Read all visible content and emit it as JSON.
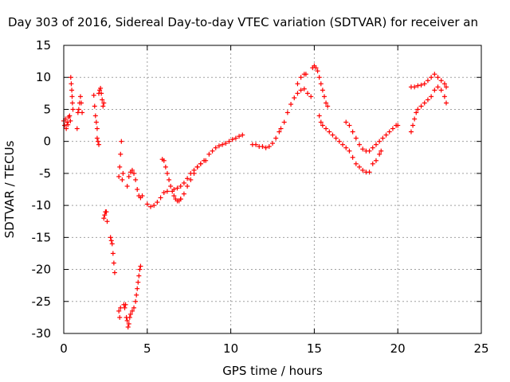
{
  "chart_data": {
    "type": "scatter",
    "title": "Day 303 of 2016, Sidereal Day-to-day VTEC variation (SDTVAR) for receiver an",
    "xlabel": "GPS time / hours",
    "ylabel": "SDTVAR / TECUs",
    "xlim": [
      0,
      25
    ],
    "ylim": [
      -30,
      15
    ],
    "xticks": [
      "0",
      "5",
      "10",
      "15",
      "20",
      "25"
    ],
    "yticks": [
      "-30",
      "-25",
      "-20",
      "-15",
      "-10",
      "-5",
      "0",
      "5",
      "10",
      "15"
    ],
    "grid": true,
    "marker": "plus",
    "series_color": "#ff0000",
    "series": [
      {
        "name": "",
        "points": [
          [
            0.0,
            3.2
          ],
          [
            0.05,
            2.5
          ],
          [
            0.1,
            3.5
          ],
          [
            0.15,
            2.0
          ],
          [
            0.2,
            3.0
          ],
          [
            0.25,
            2.6
          ],
          [
            0.3,
            3.8
          ],
          [
            0.35,
            4.0
          ],
          [
            0.4,
            3.2
          ],
          [
            0.42,
            10.0
          ],
          [
            0.45,
            9.0
          ],
          [
            0.48,
            8.0
          ],
          [
            0.5,
            7.0
          ],
          [
            0.52,
            6.0
          ],
          [
            0.55,
            5.0
          ],
          [
            0.8,
            2.0
          ],
          [
            0.85,
            4.5
          ],
          [
            0.9,
            5.0
          ],
          [
            0.95,
            6.0
          ],
          [
            1.0,
            7.0
          ],
          [
            1.05,
            6.0
          ],
          [
            1.1,
            4.5
          ],
          [
            1.8,
            7.2
          ],
          [
            1.85,
            5.5
          ],
          [
            1.9,
            4.0
          ],
          [
            1.95,
            3.0
          ],
          [
            2.0,
            2.0
          ],
          [
            2.0,
            0.5
          ],
          [
            2.05,
            0.0
          ],
          [
            2.1,
            -0.5
          ],
          [
            2.1,
            7.5
          ],
          [
            2.15,
            8.0
          ],
          [
            2.2,
            8.3
          ],
          [
            2.25,
            7.5
          ],
          [
            2.3,
            6.5
          ],
          [
            2.35,
            5.5
          ],
          [
            2.4,
            6.0
          ],
          [
            2.4,
            -12.0
          ],
          [
            2.45,
            -11.5
          ],
          [
            2.5,
            -11.0
          ],
          [
            2.55,
            -11.0
          ],
          [
            2.6,
            -12.5
          ],
          [
            2.8,
            -15.0
          ],
          [
            2.85,
            -15.5
          ],
          [
            2.9,
            -16.0
          ],
          [
            2.95,
            -17.5
          ],
          [
            3.0,
            -19.0
          ],
          [
            3.05,
            -20.5
          ],
          [
            3.3,
            -26.5
          ],
          [
            3.35,
            -27.5
          ],
          [
            3.4,
            -26.0
          ],
          [
            3.3,
            -5.5
          ],
          [
            3.35,
            -4.0
          ],
          [
            3.4,
            -2.0
          ],
          [
            3.45,
            0.0
          ],
          [
            3.5,
            -6.0
          ],
          [
            3.55,
            -5.0
          ],
          [
            3.6,
            -25.5
          ],
          [
            3.65,
            -26.0
          ],
          [
            3.7,
            -25.5
          ],
          [
            3.75,
            -27.5
          ],
          [
            3.8,
            -28.0
          ],
          [
            3.85,
            -29.0
          ],
          [
            3.9,
            -28.5
          ],
          [
            3.95,
            -27.5
          ],
          [
            4.0,
            -27.0
          ],
          [
            4.1,
            -26.5
          ],
          [
            4.2,
            -26.0
          ],
          [
            4.3,
            -25.0
          ],
          [
            4.35,
            -24.0
          ],
          [
            4.4,
            -23.0
          ],
          [
            4.45,
            -22.0
          ],
          [
            4.5,
            -21.0
          ],
          [
            4.55,
            -20.0
          ],
          [
            4.6,
            -19.5
          ],
          [
            3.8,
            -7.0
          ],
          [
            3.9,
            -5.5
          ],
          [
            4.0,
            -4.8
          ],
          [
            4.1,
            -4.5
          ],
          [
            4.2,
            -5.0
          ],
          [
            4.3,
            -6.0
          ],
          [
            4.4,
            -7.5
          ],
          [
            4.5,
            -8.5
          ],
          [
            4.6,
            -8.8
          ],
          [
            4.7,
            -8.5
          ],
          [
            5.0,
            -9.8
          ],
          [
            5.2,
            -10.2
          ],
          [
            5.4,
            -10.0
          ],
          [
            5.6,
            -9.5
          ],
          [
            5.8,
            -8.8
          ],
          [
            6.0,
            -8.0
          ],
          [
            6.2,
            -7.8
          ],
          [
            5.9,
            -2.8
          ],
          [
            6.0,
            -3.0
          ],
          [
            6.1,
            -4.0
          ],
          [
            6.2,
            -5.0
          ],
          [
            6.3,
            -6.0
          ],
          [
            6.4,
            -7.0
          ],
          [
            6.5,
            -7.8
          ],
          [
            6.6,
            -8.5
          ],
          [
            6.7,
            -9.0
          ],
          [
            6.8,
            -9.3
          ],
          [
            6.9,
            -9.3
          ],
          [
            7.0,
            -9.0
          ],
          [
            6.6,
            -7.5
          ],
          [
            6.8,
            -7.3
          ],
          [
            7.0,
            -7.0
          ],
          [
            7.2,
            -6.5
          ],
          [
            7.4,
            -5.8
          ],
          [
            7.6,
            -5.0
          ],
          [
            7.8,
            -4.5
          ],
          [
            8.0,
            -4.0
          ],
          [
            8.2,
            -3.5
          ],
          [
            7.0,
            -9.0
          ],
          [
            7.2,
            -8.2
          ],
          [
            7.4,
            -7.0
          ],
          [
            7.6,
            -6.0
          ],
          [
            7.8,
            -5.0
          ],
          [
            8.0,
            -4.0
          ],
          [
            8.2,
            -3.5
          ],
          [
            8.4,
            -3.0
          ],
          [
            8.5,
            -3.0
          ],
          [
            8.7,
            -2.0
          ],
          [
            8.9,
            -1.5
          ],
          [
            9.1,
            -1.0
          ],
          [
            9.3,
            -0.7
          ],
          [
            9.5,
            -0.5
          ],
          [
            9.7,
            -0.3
          ],
          [
            9.9,
            0.0
          ],
          [
            10.1,
            0.3
          ],
          [
            10.3,
            0.5
          ],
          [
            10.5,
            0.8
          ],
          [
            10.7,
            1.0
          ],
          [
            11.3,
            -0.5
          ],
          [
            11.5,
            -0.5
          ],
          [
            11.7,
            -0.8
          ],
          [
            11.9,
            -0.8
          ],
          [
            12.1,
            -1.0
          ],
          [
            12.3,
            -0.8
          ],
          [
            12.5,
            -0.3
          ],
          [
            12.7,
            0.5
          ],
          [
            12.9,
            1.5
          ],
          [
            13.0,
            2.0
          ],
          [
            13.2,
            3.0
          ],
          [
            13.4,
            4.5
          ],
          [
            13.6,
            5.8
          ],
          [
            13.8,
            6.8
          ],
          [
            14.0,
            7.5
          ],
          [
            14.2,
            8.0
          ],
          [
            14.4,
            8.2
          ],
          [
            14.6,
            7.5
          ],
          [
            14.8,
            7.0
          ],
          [
            14.0,
            9.0
          ],
          [
            14.2,
            10.0
          ],
          [
            14.4,
            10.5
          ],
          [
            14.5,
            10.5
          ],
          [
            14.9,
            11.5
          ],
          [
            15.0,
            11.8
          ],
          [
            15.1,
            11.5
          ],
          [
            15.2,
            11.0
          ],
          [
            15.3,
            10.0
          ],
          [
            15.4,
            9.0
          ],
          [
            15.5,
            8.0
          ],
          [
            15.6,
            7.0
          ],
          [
            15.7,
            6.0
          ],
          [
            15.8,
            5.5
          ],
          [
            15.3,
            4.0
          ],
          [
            15.4,
            3.0
          ],
          [
            15.5,
            2.5
          ],
          [
            15.7,
            2.0
          ],
          [
            15.9,
            1.5
          ],
          [
            16.1,
            1.0
          ],
          [
            16.3,
            0.5
          ],
          [
            16.5,
            0.0
          ],
          [
            16.7,
            -0.5
          ],
          [
            16.9,
            -1.0
          ],
          [
            17.1,
            -1.5
          ],
          [
            17.3,
            -2.5
          ],
          [
            17.5,
            -3.5
          ],
          [
            17.7,
            -4.0
          ],
          [
            17.9,
            -4.5
          ],
          [
            18.1,
            -4.8
          ],
          [
            18.3,
            -4.8
          ],
          [
            16.9,
            3.0
          ],
          [
            17.1,
            2.5
          ],
          [
            17.3,
            1.5
          ],
          [
            17.5,
            0.5
          ],
          [
            17.7,
            -0.5
          ],
          [
            17.9,
            -1.2
          ],
          [
            18.1,
            -1.5
          ],
          [
            18.3,
            -1.5
          ],
          [
            18.5,
            -1.0
          ],
          [
            18.7,
            -0.5
          ],
          [
            18.5,
            -3.5
          ],
          [
            18.7,
            -3.0
          ],
          [
            18.9,
            -2.0
          ],
          [
            19.0,
            -1.5
          ],
          [
            18.9,
            0.0
          ],
          [
            19.1,
            0.5
          ],
          [
            19.3,
            1.0
          ],
          [
            19.5,
            1.5
          ],
          [
            19.7,
            2.0
          ],
          [
            19.9,
            2.5
          ],
          [
            20.0,
            2.5
          ],
          [
            20.8,
            1.5
          ],
          [
            20.9,
            2.5
          ],
          [
            21.0,
            3.5
          ],
          [
            21.1,
            4.5
          ],
          [
            21.2,
            5.0
          ],
          [
            21.4,
            5.5
          ],
          [
            21.6,
            6.0
          ],
          [
            21.8,
            6.5
          ],
          [
            22.0,
            7.0
          ],
          [
            22.2,
            8.0
          ],
          [
            22.4,
            8.5
          ],
          [
            22.6,
            8.0
          ],
          [
            22.8,
            7.0
          ],
          [
            22.9,
            6.0
          ],
          [
            20.8,
            8.5
          ],
          [
            21.0,
            8.5
          ],
          [
            21.2,
            8.7
          ],
          [
            21.4,
            8.8
          ],
          [
            21.6,
            9.0
          ],
          [
            21.8,
            9.5
          ],
          [
            22.0,
            10.0
          ],
          [
            22.2,
            10.5
          ],
          [
            22.4,
            10.0
          ],
          [
            22.6,
            9.5
          ],
          [
            22.8,
            9.0
          ],
          [
            22.9,
            8.5
          ]
        ]
      }
    ]
  }
}
